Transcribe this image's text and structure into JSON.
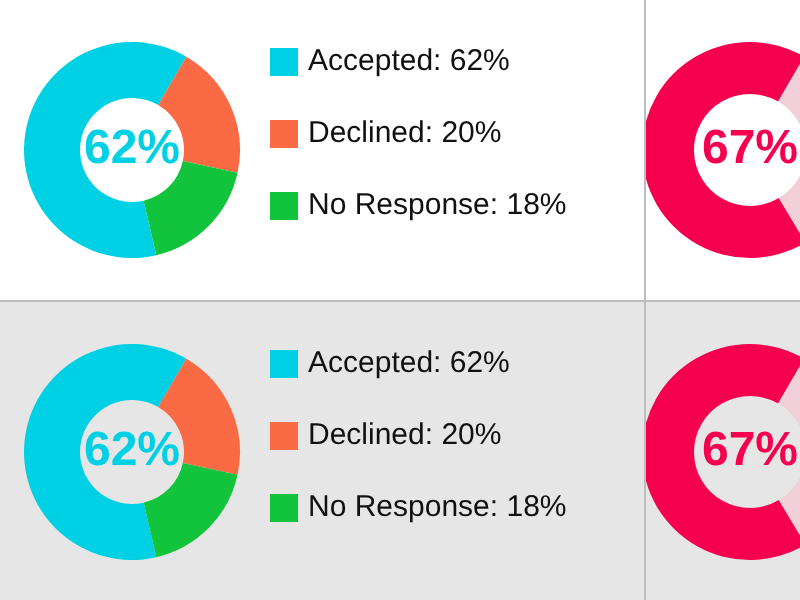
{
  "chart_data": [
    {
      "type": "donut",
      "categories": [
        "Accepted: 62%",
        "Declined: 20%",
        "No Response: 18%"
      ],
      "values": [
        62,
        20,
        18
      ],
      "colors": [
        "#00d0e4",
        "#fa6a44",
        "#12c43c"
      ],
      "annotations": [
        "62%"
      ],
      "legend": "right"
    },
    {
      "type": "donut",
      "categories": [
        null,
        null
      ],
      "values": [
        67,
        33
      ],
      "colors": [
        "#f5004f",
        "#f2d0da"
      ],
      "annotations": [
        "67%"
      ]
    },
    {
      "type": "donut",
      "categories": [
        "Accepted: 62%",
        "Declined: 20%",
        "No Response: 18%"
      ],
      "values": [
        62,
        20,
        18
      ],
      "colors": [
        "#00d0e4",
        "#fa6a44",
        "#12c43c"
      ],
      "annotations": [
        "62%"
      ],
      "legend": "right"
    },
    {
      "type": "donut",
      "categories": [
        null,
        null
      ],
      "values": [
        67,
        33
      ],
      "colors": [
        "#f5004f",
        "#f2d0da"
      ],
      "annotations": [
        "67%"
      ]
    }
  ]
}
